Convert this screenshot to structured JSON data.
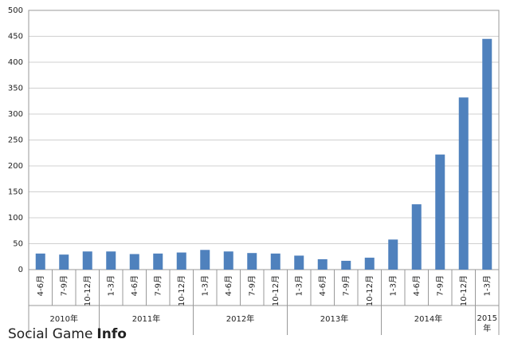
{
  "chart_data": {
    "type": "bar",
    "groups": [
      {
        "label": "2010年",
        "categories": [
          "4-6月",
          "7-9月",
          "10-12月"
        ]
      },
      {
        "label": "2011年",
        "categories": [
          "1-3月",
          "4-6月",
          "7-9月",
          "10-12月"
        ]
      },
      {
        "label": "2012年",
        "categories": [
          "1-3月",
          "4-6月",
          "7-9月",
          "10-12月"
        ]
      },
      {
        "label": "2013年",
        "categories": [
          "1-3月",
          "4-6月",
          "7-9月",
          "10-12月"
        ]
      },
      {
        "label": "2014年",
        "categories": [
          "1-3月",
          "4-6月",
          "7-9月",
          "10-12月"
        ]
      },
      {
        "label": "2015年",
        "categories": [
          "1-3月"
        ]
      }
    ],
    "values": [
      31,
      29,
      35,
      35,
      30,
      31,
      33,
      38,
      35,
      32,
      31,
      27,
      20,
      17,
      23,
      58,
      126,
      222,
      332,
      445
    ],
    "color": "#4f81bd",
    "ylim": [
      0,
      500
    ],
    "yticks": [
      0,
      50,
      100,
      150,
      200,
      250,
      300,
      350,
      400,
      450,
      500
    ],
    "grid": true,
    "watermark": [
      "Social Game",
      "Info"
    ]
  }
}
